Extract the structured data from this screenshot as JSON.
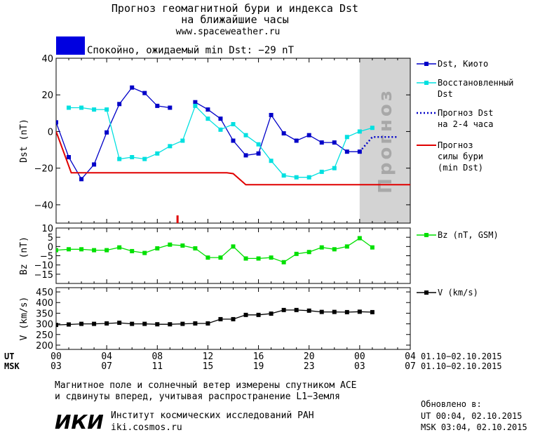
{
  "header": {
    "title_line1": "Прогноз геомагнитной бури и индекса Dst",
    "title_line2": "на ближайшие часы",
    "site": "www.spaceweather.ru"
  },
  "status": {
    "text": "Спокойно, ожидаемый min Dst: −29 nT",
    "color": "#0000e0"
  },
  "chart_data": [
    {
      "type": "line",
      "id": "dst",
      "ylabel": "Dst (nT)",
      "ylim": [
        -50,
        40
      ],
      "yticks": [
        -40,
        -20,
        0,
        20,
        40
      ],
      "xlim_hours": [
        0,
        28
      ],
      "forecast_band_label": "Прогноз",
      "series": [
        {
          "name": "Dst, Киото",
          "color": "#0000c8",
          "marker": "square",
          "points": [
            [
              0,
              5
            ],
            [
              1,
              -14
            ],
            [
              2,
              -26
            ],
            [
              3,
              -18
            ],
            [
              4,
              -0.5
            ],
            [
              5,
              15
            ],
            [
              6,
              24
            ],
            [
              7,
              21
            ],
            [
              8,
              14
            ],
            [
              9,
              13
            ],
            [
              11,
              16
            ],
            [
              12,
              12
            ],
            [
              13,
              7
            ],
            [
              14,
              -5
            ],
            [
              15,
              -13
            ],
            [
              16,
              -12
            ],
            [
              17,
              9
            ],
            [
              18,
              -1
            ],
            [
              19,
              -5
            ],
            [
              20,
              -2
            ],
            [
              21,
              -6
            ],
            [
              22,
              -6
            ],
            [
              23,
              -11
            ],
            [
              24,
              -11
            ]
          ]
        },
        {
          "name": "Восстановленный Dst",
          "color": "#00e0e0",
          "marker": "square",
          "points": [
            [
              1,
              13
            ],
            [
              2,
              13
            ],
            [
              3,
              12
            ],
            [
              4,
              12
            ],
            [
              5,
              -15
            ],
            [
              6,
              -14
            ],
            [
              7,
              -15
            ],
            [
              8,
              -12
            ],
            [
              9,
              -8
            ],
            [
              10,
              -5
            ],
            [
              11,
              14
            ],
            [
              12,
              7
            ],
            [
              13,
              1
            ],
            [
              14,
              4
            ],
            [
              15,
              -2
            ],
            [
              16,
              -7
            ],
            [
              17,
              -16
            ],
            [
              18,
              -24
            ],
            [
              19,
              -25
            ],
            [
              20,
              -25
            ],
            [
              21,
              -22
            ],
            [
              22,
              -20
            ],
            [
              23,
              -3
            ],
            [
              24,
              0
            ],
            [
              25,
              2
            ]
          ]
        },
        {
          "name": "Прогноз Dst на 2-4 часа",
          "color": "#0000c8",
          "style": "dotted",
          "points": [
            [
              24,
              -11
            ],
            [
              25,
              -3
            ],
            [
              26,
              -3
            ],
            [
              27,
              -3
            ]
          ]
        },
        {
          "name": "Прогноз силы бури (min Dst)",
          "color": "#e00000",
          "points": [
            [
              0,
              0
            ],
            [
              1.2,
              -22.5
            ],
            [
              13.5,
              -22.5
            ],
            [
              14,
              -23
            ],
            [
              15,
              -29
            ],
            [
              28,
              -29
            ]
          ]
        }
      ],
      "legend": [
        {
          "lines": [
            "Dst, Киото"
          ],
          "color": "#0000c8",
          "kind": "marker"
        },
        {
          "lines": [
            "Восстановленный",
            "Dst"
          ],
          "color": "#00e0e0",
          "kind": "marker"
        },
        {
          "lines": [
            "Прогноз Dst",
            "на 2-4 часа"
          ],
          "color": "#0000c8",
          "kind": "dotted"
        },
        {
          "lines": [
            "Прогноз",
            "силы бури",
            "(min Dst)"
          ],
          "color": "#e00000",
          "kind": "line"
        }
      ]
    },
    {
      "type": "line",
      "id": "bz",
      "ylabel": "Bz (nT)",
      "ylim": [
        -20,
        10
      ],
      "yticks": [
        10,
        5,
        0,
        -5,
        -10,
        -15
      ],
      "series": [
        {
          "name": "Bz (nT, GSM)",
          "color": "#00e000",
          "marker": "square",
          "points": [
            [
              0,
              -2
            ],
            [
              1,
              -1.5
            ],
            [
              2,
              -1.5
            ],
            [
              3,
              -2
            ],
            [
              4,
              -2
            ],
            [
              5,
              -0.5
            ],
            [
              6,
              -2.5
            ],
            [
              7,
              -3.5
            ],
            [
              8,
              -1
            ],
            [
              9,
              1
            ],
            [
              10,
              0.5
            ],
            [
              11,
              -1
            ],
            [
              12,
              -6
            ],
            [
              13,
              -6
            ],
            [
              14,
              0
            ],
            [
              15,
              -6.5
            ],
            [
              16,
              -6.5
            ],
            [
              17,
              -6
            ],
            [
              18,
              -8.5
            ],
            [
              19,
              -4
            ],
            [
              20,
              -3
            ],
            [
              21,
              -0.5
            ],
            [
              22,
              -1.5
            ],
            [
              23,
              0
            ],
            [
              24,
              4.5
            ],
            [
              25,
              -0.5
            ]
          ]
        }
      ],
      "legend": [
        {
          "lines": [
            "Bz (nT, GSM)"
          ],
          "color": "#00e000",
          "kind": "marker"
        }
      ]
    },
    {
      "type": "line",
      "id": "v",
      "ylabel": "V (km/s)",
      "ylim": [
        180,
        470
      ],
      "yticks": [
        450,
        400,
        350,
        300,
        250,
        200
      ],
      "series": [
        {
          "name": "V (km/s)",
          "color": "#000000",
          "marker": "square",
          "points": [
            [
              0,
              295
            ],
            [
              1,
              297
            ],
            [
              2,
              300
            ],
            [
              3,
              300
            ],
            [
              4,
              302
            ],
            [
              5,
              305
            ],
            [
              6,
              300
            ],
            [
              7,
              300
            ],
            [
              8,
              298
            ],
            [
              9,
              298
            ],
            [
              10,
              300
            ],
            [
              11,
              302
            ],
            [
              12,
              302
            ],
            [
              13,
              322
            ],
            [
              14,
              322
            ],
            [
              15,
              342
            ],
            [
              16,
              342
            ],
            [
              17,
              348
            ],
            [
              18,
              365
            ],
            [
              19,
              365
            ],
            [
              20,
              362
            ],
            [
              21,
              356
            ],
            [
              22,
              356
            ],
            [
              23,
              355
            ],
            [
              24,
              357
            ],
            [
              25,
              355
            ]
          ]
        }
      ],
      "legend": [
        {
          "lines": [
            "V (km/s)"
          ],
          "color": "#000000",
          "kind": "marker"
        }
      ]
    }
  ],
  "xaxis": {
    "ut_label": "UT",
    "msk_label": "MSK",
    "ut_ticks": [
      "00",
      "04",
      "08",
      "12",
      "16",
      "20",
      "00",
      "04"
    ],
    "msk_ticks": [
      "03",
      "07",
      "11",
      "15",
      "19",
      "23",
      "03",
      "07"
    ],
    "ut_range": "01.10−02.10.2015",
    "msk_range": "01.10−02.10.2015",
    "now_marker_hour": 9.6
  },
  "footer": {
    "note_line1": "Магнитное поле и солнечный ветер измерены спутником ACE",
    "note_line2": "и сдвинуты вперед, учитывая распространение L1−Земля",
    "logo": "ИКИ",
    "institute": "Институт космических исследований РАН",
    "institute_site": "iki.cosmos.ru",
    "updated_label": "Обновлено в:",
    "updated_ut": "UT  00:04, 02.10.2015",
    "updated_msk": "MSK 03:04, 02.10.2015"
  }
}
